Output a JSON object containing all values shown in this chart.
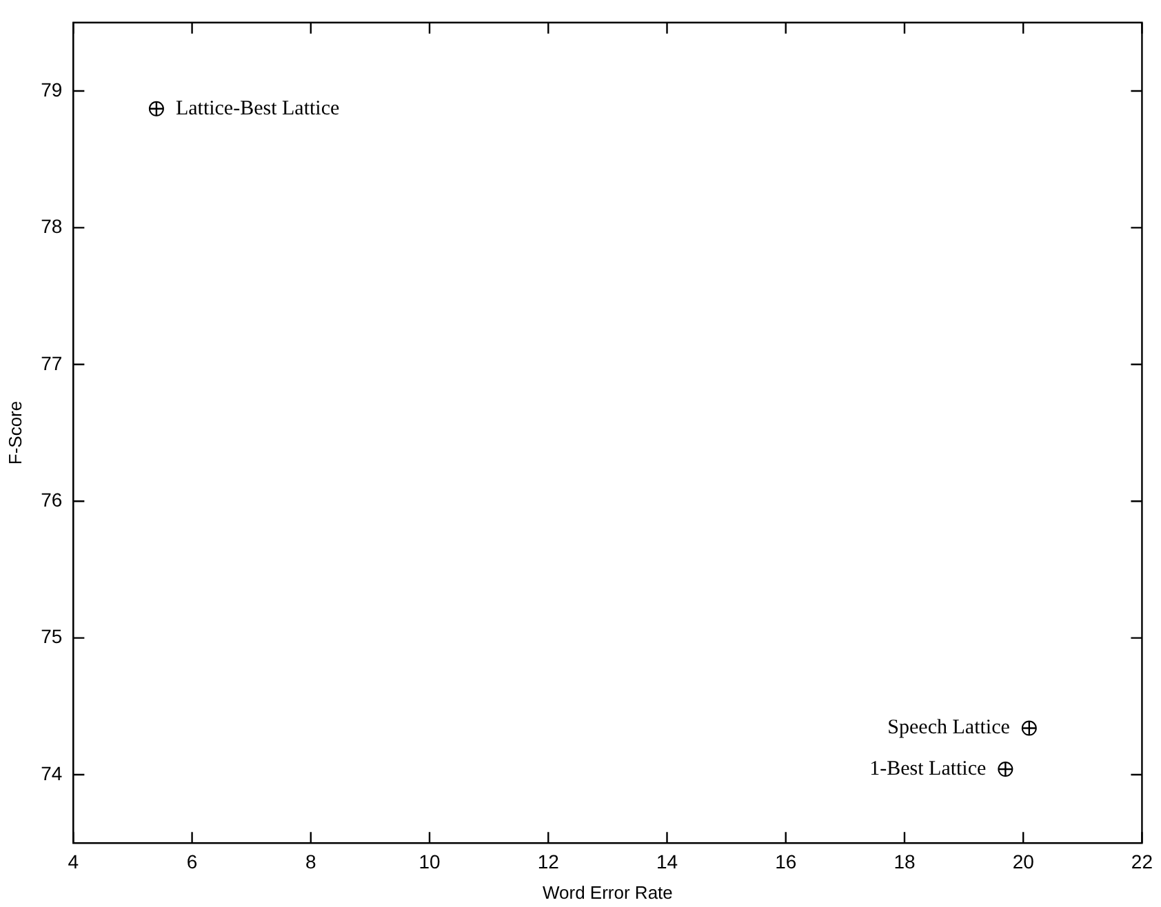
{
  "chart_data": {
    "type": "scatter",
    "xlabel": "Word Error Rate",
    "ylabel": "F-Score",
    "marker": "circle",
    "grid": false,
    "legend": false,
    "xlim": [
      4,
      22
    ],
    "xticks": [
      4,
      6,
      8,
      10,
      12,
      14,
      16,
      18,
      20,
      22
    ],
    "ylim": [
      73.5,
      79.5
    ],
    "yticks": [
      74,
      75,
      76,
      77,
      78,
      79
    ],
    "series": [
      {
        "name": "Lattice-Best Lattice",
        "color": "#000000",
        "x": [
          5.4
        ],
        "values": [
          78.87
        ]
      },
      {
        "name": "Speech Lattice",
        "color": "#000000",
        "x": [
          20.1
        ],
        "values": [
          74.34
        ]
      },
      {
        "name": "1-Best Lattice",
        "color": "#000000",
        "x": [
          19.7
        ],
        "values": [
          74.04
        ]
      }
    ]
  }
}
